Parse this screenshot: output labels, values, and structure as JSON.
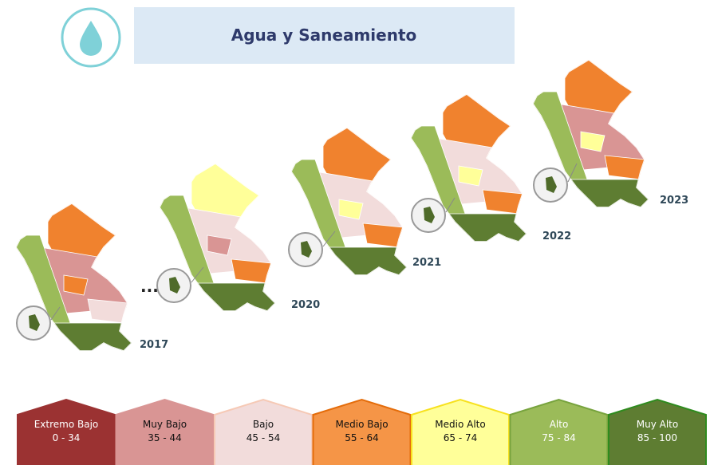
{
  "header": {
    "title": "Agua y Saneamiento"
  },
  "maps": [
    {
      "year": "2017"
    },
    {
      "year": "2020"
    },
    {
      "year": "2021"
    },
    {
      "year": "2022"
    },
    {
      "year": "2023"
    }
  ],
  "ellipsis": "...",
  "legend": [
    {
      "label": "Extremo Bajo",
      "range": "0 - 34"
    },
    {
      "label": "Muy Bajo",
      "range": "35 - 44"
    },
    {
      "label": "Bajo",
      "range": "45 - 54"
    },
    {
      "label": "Medio Bajo",
      "range": "55 - 64"
    },
    {
      "label": "Medio Alto",
      "range": "65 - 74"
    },
    {
      "label": "Alto",
      "range": "75 - 84"
    },
    {
      "label": "Muy Alto",
      "range": "85 - 100"
    }
  ]
}
